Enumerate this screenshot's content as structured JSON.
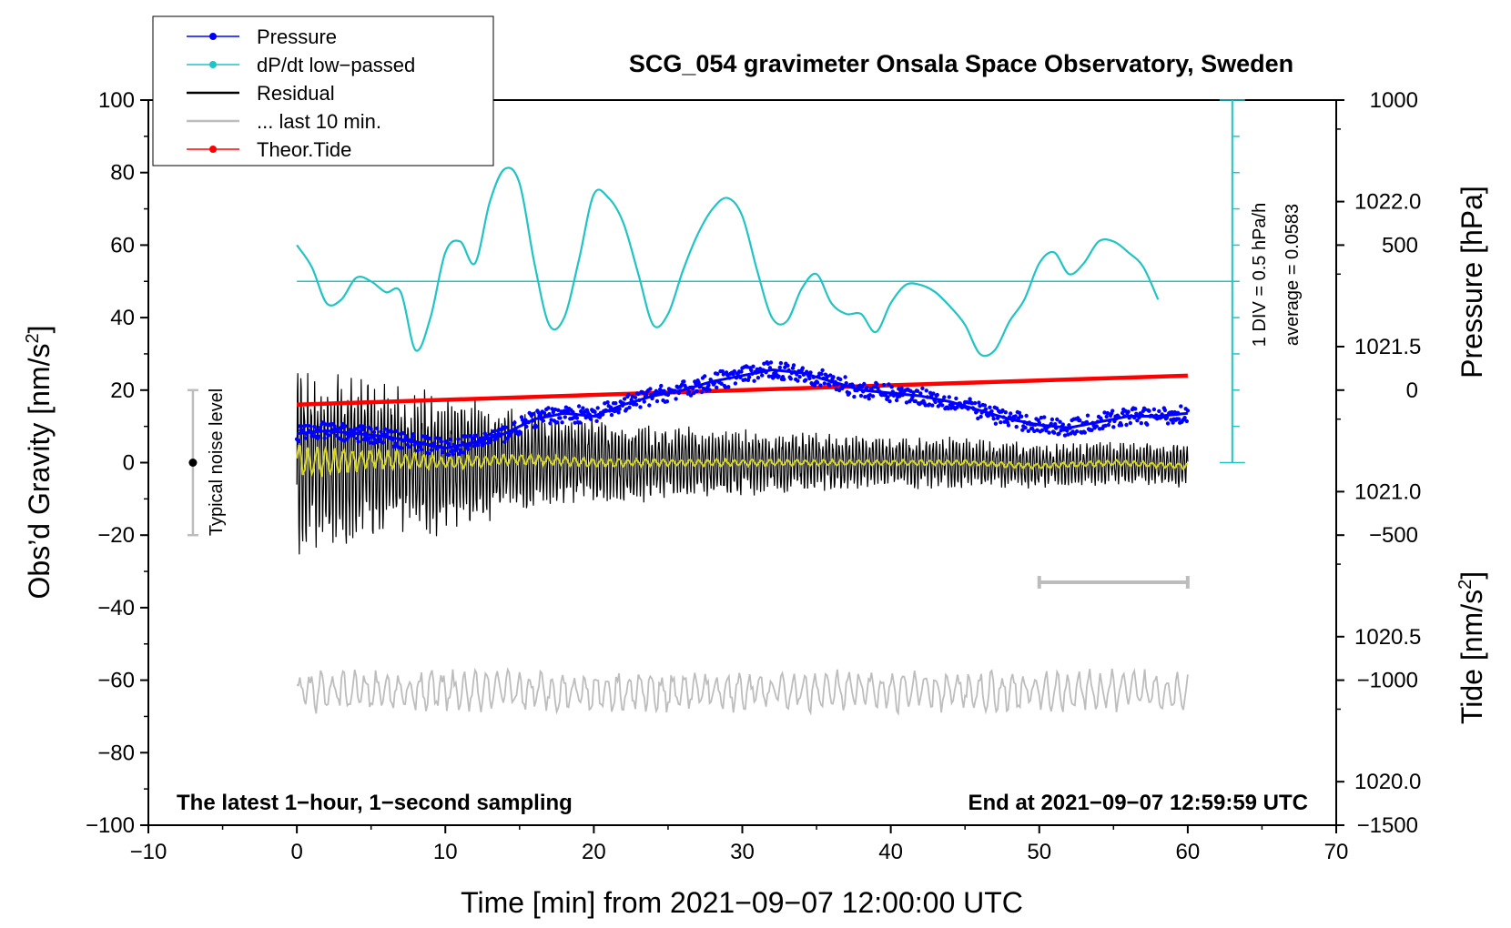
{
  "chart_data": {
    "type": "line",
    "title": "SCG_054 gravimeter Onsala Space Observatory, Sweden",
    "xlabel": "Time [min] from 2021−09−07 12:00:00 UTC",
    "ylabel_left": "Obs’d Gravity [nm/s",
    "ylabel_left_sup": "2",
    "ylabel_left_end": "]",
    "ylabel_right_pressure": "Pressure [hPa]",
    "ylabel_right_tide": "Tide [nm/s",
    "ylabel_right_tide_sup": "2",
    "ylabel_right_tide_end": "]",
    "xlim": [
      -10,
      70
    ],
    "ylim_left": [
      -100,
      100
    ],
    "pressure_range": [
      1019.85,
      1022.35
    ],
    "tide_range": [
      -1500,
      1000
    ],
    "x_ticks": [
      "−10",
      "0",
      "10",
      "20",
      "30",
      "40",
      "50",
      "60",
      "70"
    ],
    "y_left_ticks": [
      "100",
      "80",
      "60",
      "40",
      "20",
      "0",
      "−20",
      "−40",
      "−60",
      "−80",
      "−100"
    ],
    "pressure_ticks": [
      "1022.0",
      "1021.5",
      "1021.0",
      "1020.5",
      "1020.0"
    ],
    "tide_ticks": [
      "1000",
      "500",
      "0",
      "−500",
      "−1000",
      "−1500"
    ],
    "legend": [
      {
        "label": "Pressure",
        "color": "#0000ff",
        "style": "line-dot"
      },
      {
        "label": "dP/dt low−passed",
        "color": "#20c4c4",
        "style": "line-dot"
      },
      {
        "label": "Residual",
        "color": "#000000",
        "style": "line"
      },
      {
        "label": "... last 10 min.",
        "color": "#bdbdbd",
        "style": "line"
      },
      {
        "label": "Theor.Tide",
        "color": "#ff0000",
        "style": "line-dot"
      }
    ],
    "note_left": "The latest 1−hour, 1−second sampling",
    "note_right": "End at 2021−09−07 12:59:59 UTC",
    "noise_label": "Typical noise level",
    "noise_level": {
      "x": -7,
      "center": 0,
      "half_range": 20
    },
    "dpdt_scale_label": "1 DIV = 0.5 hPa/h",
    "dpdt_average_label": "average = 0.0583",
    "dpdt_zero_level_left_units": 50,
    "series": [
      {
        "name": "Pressure",
        "axis": "pressure",
        "x": [
          0,
          2,
          4,
          6,
          8,
          10,
          12,
          14,
          16,
          18,
          20,
          22,
          24,
          26,
          28,
          30,
          32,
          34,
          36,
          38,
          40,
          42,
          44,
          46,
          48,
          50,
          52,
          54,
          56,
          58,
          60
        ],
        "values": [
          1021.2,
          1021.21,
          1021.2,
          1021.19,
          1021.17,
          1021.15,
          1021.17,
          1021.2,
          1021.25,
          1021.27,
          1021.26,
          1021.3,
          1021.33,
          1021.35,
          1021.38,
          1021.4,
          1021.42,
          1021.41,
          1021.38,
          1021.35,
          1021.34,
          1021.33,
          1021.31,
          1021.28,
          1021.25,
          1021.23,
          1021.22,
          1021.24,
          1021.26,
          1021.26,
          1021.27
        ]
      },
      {
        "name": "dP/dt low−passed",
        "axis": "left",
        "x": [
          0,
          1,
          2,
          3,
          4,
          5,
          6,
          7,
          8,
          9,
          10,
          11,
          12,
          13,
          14,
          15,
          16,
          17,
          18,
          19,
          20,
          21,
          22,
          23,
          24,
          25,
          26,
          27,
          28,
          29,
          30,
          31,
          32,
          33,
          34,
          35,
          36,
          37,
          38,
          39,
          40,
          41,
          42,
          43,
          44,
          45,
          46,
          47,
          48,
          49,
          50,
          51,
          52,
          53,
          54,
          55,
          56,
          57,
          58
        ],
        "values": [
          60,
          54,
          44,
          45,
          51,
          50,
          47,
          47,
          31,
          40,
          58,
          61,
          55,
          72,
          81,
          77,
          55,
          38,
          40,
          56,
          74,
          73,
          66,
          52,
          38,
          41,
          53,
          63,
          70,
          73,
          68,
          53,
          40,
          39,
          48,
          52,
          44,
          41,
          41,
          36,
          44,
          49,
          49,
          47,
          43,
          38,
          30,
          31,
          39,
          45,
          55,
          58,
          52,
          55,
          61,
          61,
          58,
          54,
          45
        ]
      },
      {
        "name": "Residual",
        "axis": "left",
        "x": [
          0,
          5,
          10,
          15,
          20,
          25,
          30,
          35,
          40,
          45,
          50,
          55,
          60
        ],
        "values": [
          0,
          1,
          0,
          1,
          0,
          0,
          0,
          0,
          0,
          0,
          -1,
          0,
          -1
        ],
        "envelope": [
          25,
          22,
          20,
          14,
          12,
          10,
          9,
          8,
          7,
          7,
          6,
          6,
          6
        ]
      },
      {
        "name": "Residual smoothed",
        "axis": "left",
        "x": [
          0,
          5,
          10,
          15,
          20,
          25,
          30,
          35,
          40,
          45,
          50,
          55,
          60
        ],
        "values": [
          0,
          1,
          0,
          1,
          0,
          0,
          0,
          0,
          0,
          0,
          -1,
          0,
          -1
        ],
        "envelope": [
          5,
          3,
          2,
          1.5,
          1.2,
          1.0,
          1.0,
          0.8,
          0.8,
          0.8,
          0.8,
          0.8,
          0.8
        ]
      },
      {
        "name": "... last 10 min.",
        "axis": "left",
        "baseline": -63,
        "span_minutes": [
          50,
          60
        ],
        "x": [
          0,
          60
        ],
        "values": [
          -63,
          -63
        ],
        "envelope": [
          6,
          6
        ]
      },
      {
        "name": "Theor.Tide",
        "axis": "tide",
        "x": [
          0,
          60
        ],
        "values": [
          -50,
          50
        ]
      }
    ]
  }
}
